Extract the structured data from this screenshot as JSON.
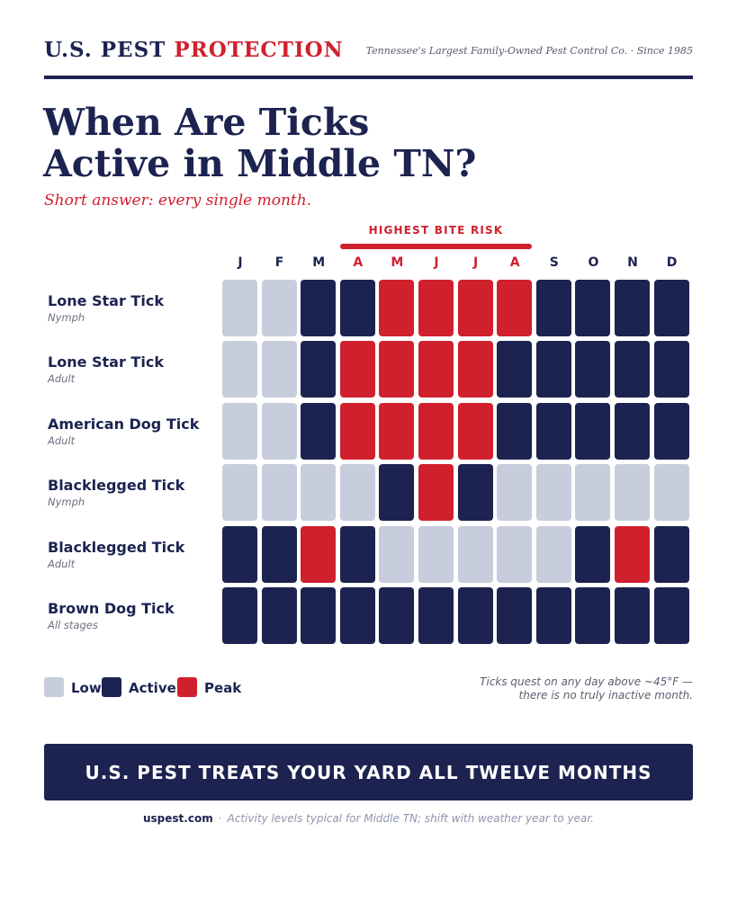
{
  "header": {
    "brand_main": "U.S. PEST",
    "brand_accent": "PROTECTION",
    "tagline": "Tennessee's Largest Family-Owned Pest Control Co. · Since 1985"
  },
  "title_line1": "When Are Ticks",
  "title_line2": "Active in Middle TN?",
  "subtitle": "Short answer: every single month.",
  "colors": {
    "low": "#c8cddd",
    "active": "#1c2350",
    "peak": "#d0202e"
  },
  "chart_data": {
    "type": "heatmap",
    "highlight_label": "HIGHEST BITE RISK",
    "highlight_months": [
      3,
      4,
      5,
      6,
      7
    ],
    "months": [
      "J",
      "F",
      "M",
      "A",
      "M",
      "J",
      "J",
      "A",
      "S",
      "O",
      "N",
      "D"
    ],
    "levels": [
      "Low",
      "Active",
      "Peak"
    ],
    "rows": [
      {
        "name": "Lone Star Tick",
        "stage": "Nymph",
        "values": [
          "Low",
          "Low",
          "Active",
          "Active",
          "Peak",
          "Peak",
          "Peak",
          "Peak",
          "Active",
          "Active",
          "Active",
          "Active"
        ]
      },
      {
        "name": "Lone Star Tick",
        "stage": "Adult",
        "values": [
          "Low",
          "Low",
          "Active",
          "Peak",
          "Peak",
          "Peak",
          "Peak",
          "Active",
          "Active",
          "Active",
          "Active",
          "Active"
        ]
      },
      {
        "name": "American Dog Tick",
        "stage": "Adult",
        "values": [
          "Low",
          "Low",
          "Active",
          "Peak",
          "Peak",
          "Peak",
          "Peak",
          "Active",
          "Active",
          "Active",
          "Active",
          "Active"
        ]
      },
      {
        "name": "Blacklegged Tick",
        "stage": "Nymph",
        "values": [
          "Low",
          "Low",
          "Low",
          "Low",
          "Active",
          "Peak",
          "Active",
          "Low",
          "Low",
          "Low",
          "Low",
          "Low"
        ]
      },
      {
        "name": "Blacklegged Tick",
        "stage": "Adult",
        "values": [
          "Active",
          "Active",
          "Peak",
          "Active",
          "Low",
          "Low",
          "Low",
          "Low",
          "Low",
          "Active",
          "Peak",
          "Active"
        ]
      },
      {
        "name": "Brown Dog Tick",
        "stage": "All stages",
        "values": [
          "Active",
          "Active",
          "Active",
          "Active",
          "Active",
          "Active",
          "Active",
          "Active",
          "Active",
          "Active",
          "Active",
          "Active"
        ]
      }
    ]
  },
  "legend": {
    "low": "Low",
    "active": "Active",
    "peak": "Peak"
  },
  "note_line1": "Ticks quest on any day above ~45°F —",
  "note_line2": "there is no truly inactive month.",
  "cta": "U.S. PEST TREATS YOUR YARD ALL TWELVE MONTHS",
  "footer": {
    "site": "uspest.com",
    "separator": "·",
    "disclaimer": "Activity levels typical for Middle TN; shift with weather year to year."
  }
}
